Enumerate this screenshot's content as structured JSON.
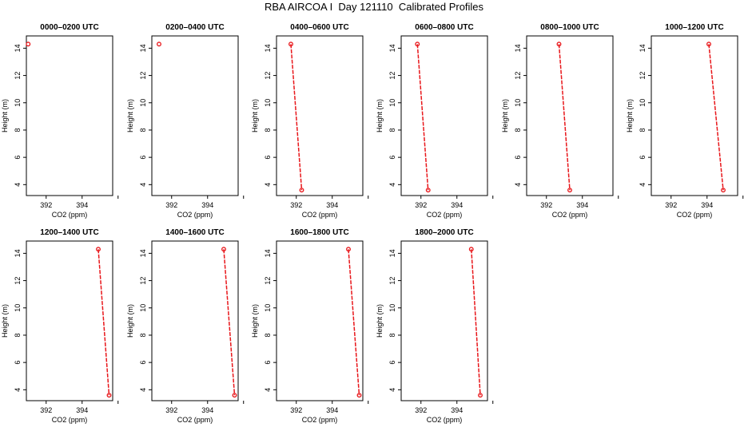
{
  "title": "RBA AIRCOA I  Day 121110  Calibrated Profiles",
  "chart_data": {
    "type": "line",
    "title": "RBA AIRCOA I  Day 121110  Calibrated Profiles",
    "xlabel": "CO2 (ppm)",
    "ylabel": "Height (m)",
    "x_ticks": [
      "392",
      "394"
    ],
    "y_ticks": [
      "4",
      "6",
      "8",
      "10",
      "12",
      "14"
    ],
    "xlim": [
      390.9,
      395.7
    ],
    "ylim": [
      3.2,
      14.9
    ],
    "grid": false,
    "line_color": "#e8161a",
    "marker_color": "#e8161a",
    "panels": [
      {
        "title": "0000–0200 UTC",
        "points": [
          {
            "x": 391.0,
            "y": 14.3
          }
        ]
      },
      {
        "title": "0200–0400 UTC",
        "points": [
          {
            "x": 391.3,
            "y": 14.3
          }
        ]
      },
      {
        "title": "0400–0600 UTC",
        "points": [
          {
            "x": 391.7,
            "y": 14.3
          },
          {
            "x": 392.3,
            "y": 3.6
          }
        ]
      },
      {
        "title": "0600–0800 UTC",
        "points": [
          {
            "x": 391.8,
            "y": 14.3
          },
          {
            "x": 392.4,
            "y": 3.6
          }
        ]
      },
      {
        "title": "0800–1000 UTC",
        "points": [
          {
            "x": 392.7,
            "y": 14.3
          },
          {
            "x": 393.3,
            "y": 3.6
          }
        ]
      },
      {
        "title": "1000–1200 UTC",
        "points": [
          {
            "x": 394.1,
            "y": 14.3
          },
          {
            "x": 394.9,
            "y": 3.6
          }
        ]
      },
      {
        "title": "1200–1400 UTC",
        "points": [
          {
            "x": 394.9,
            "y": 14.3
          },
          {
            "x": 395.5,
            "y": 3.6
          }
        ]
      },
      {
        "title": "1400–1600 UTC",
        "points": [
          {
            "x": 394.9,
            "y": 14.3
          },
          {
            "x": 395.5,
            "y": 3.6
          }
        ]
      },
      {
        "title": "1600–1800 UTC",
        "points": [
          {
            "x": 394.9,
            "y": 14.3
          },
          {
            "x": 395.5,
            "y": 3.6
          }
        ]
      },
      {
        "title": "1800–2000 UTC",
        "points": [
          {
            "x": 394.8,
            "y": 14.3
          },
          {
            "x": 395.3,
            "y": 3.6
          }
        ]
      }
    ]
  }
}
